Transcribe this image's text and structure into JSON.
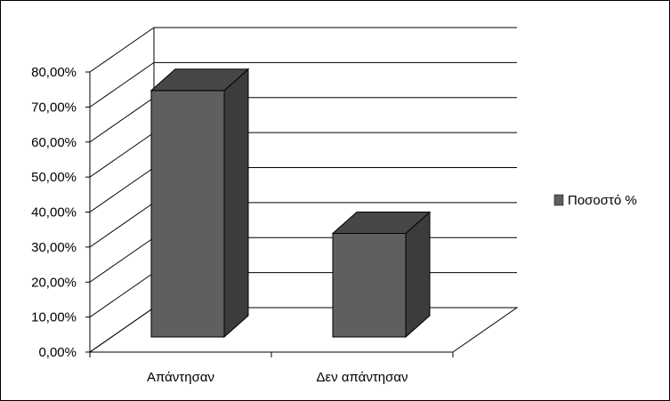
{
  "chart_data": {
    "type": "bar",
    "style": "3d",
    "categories": [
      "Απάντησαν",
      "Δεν απάντησαν"
    ],
    "series": [
      {
        "name": "Ποσοστό %",
        "values": [
          70.4,
          29.6
        ],
        "color": "#5f5f5f"
      }
    ],
    "ylim": [
      0,
      80
    ],
    "yticks": [
      0,
      10,
      20,
      30,
      40,
      50,
      60,
      70,
      80
    ],
    "ytick_labels": [
      "0,00%",
      "10,00%",
      "20,00%",
      "30,00%",
      "40,00%",
      "50,00%",
      "60,00%",
      "70,00%",
      "80,00%"
    ],
    "grid": true,
    "legend_position": "right",
    "colors": {
      "bar_front": "#5f5f5f",
      "bar_side": "#3c3c3c",
      "bar_top": "#474747",
      "grid": "#000000"
    }
  }
}
